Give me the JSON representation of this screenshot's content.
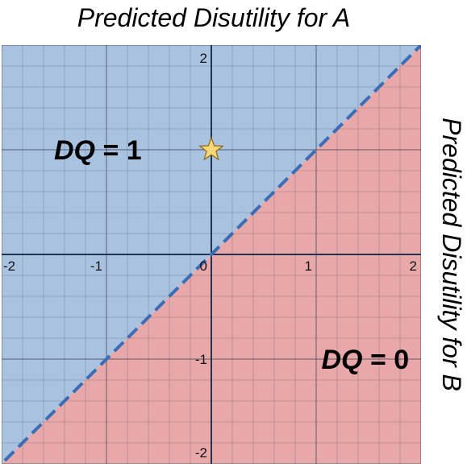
{
  "titles": {
    "top": "Predicted Disutility for A",
    "right": "Predicted Disutility for B"
  },
  "chart_data": {
    "type": "scatter",
    "title": "",
    "xlabel": "Predicted Disutility for A",
    "ylabel": "Predicted Disutility for B",
    "xlim": [
      -2,
      2
    ],
    "ylim": [
      -2,
      2
    ],
    "grid": true,
    "x_ticks": [
      "-2",
      "-1",
      "0",
      "1",
      "2"
    ],
    "y_ticks": [
      "2",
      "-1",
      "-2"
    ],
    "regions": [
      {
        "label": "DQ = 1",
        "condition": "y > x",
        "color": "#a9c2e0"
      },
      {
        "label": "DQ = 0",
        "condition": "y < x",
        "color": "#e8a8aa"
      }
    ],
    "region_labels": [
      {
        "text": "DQ = 1",
        "x": -1.5,
        "y": 1.0
      },
      {
        "text": "DQ = 0",
        "x": 1.05,
        "y": -1.0
      }
    ],
    "boundary": {
      "from": [
        -2,
        -2
      ],
      "to": [
        2,
        2
      ],
      "style": "dashed",
      "color": "#3a6db5"
    },
    "points": [
      {
        "x": 0,
        "y": 1,
        "marker": "star",
        "color": "#f7d774"
      }
    ]
  }
}
